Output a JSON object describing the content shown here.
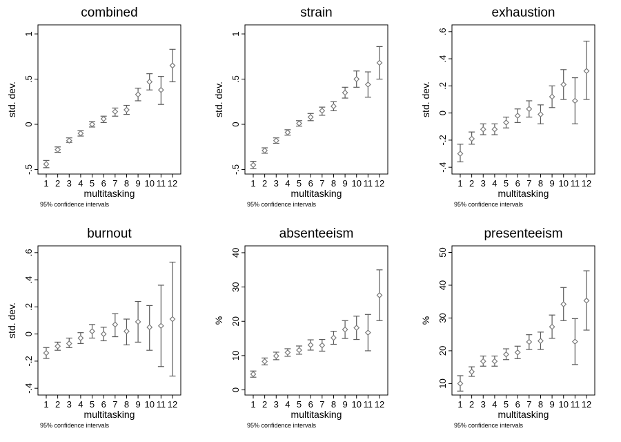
{
  "chart_data": [
    {
      "type": "scatter",
      "title": "combined",
      "xlabel": "multitasking",
      "ylabel": "std. dev.",
      "note": "95% confidence intervals",
      "x": [
        1,
        2,
        3,
        4,
        5,
        6,
        7,
        8,
        9,
        10,
        11,
        12
      ],
      "xticks": [
        "1",
        "2",
        "3",
        "4",
        "5",
        "6",
        "7",
        "8",
        "9",
        "10",
        "11",
        "12"
      ],
      "ylim": [
        -0.55,
        1.1
      ],
      "yticks": [
        -0.5,
        0,
        0.5,
        1
      ],
      "ytick_labels": [
        "-.5",
        "0",
        ".5",
        "1"
      ],
      "grid": false,
      "legend": "none",
      "series": [
        {
          "y": [
            -0.44,
            -0.28,
            -0.18,
            -0.1,
            0.0,
            0.06,
            0.14,
            0.16,
            0.33,
            0.47,
            0.38,
            0.65
          ],
          "lower": [
            -0.48,
            -0.31,
            -0.2,
            -0.13,
            -0.03,
            0.02,
            0.09,
            0.11,
            0.26,
            0.38,
            0.22,
            0.47
          ],
          "upper": [
            -0.4,
            -0.25,
            -0.15,
            -0.07,
            0.03,
            0.09,
            0.18,
            0.21,
            0.4,
            0.56,
            0.53,
            0.83
          ]
        }
      ]
    },
    {
      "type": "scatter",
      "title": "strain",
      "xlabel": "multitasking",
      "ylabel": "std. dev.",
      "note": "95% confidence intervals",
      "x": [
        1,
        2,
        3,
        4,
        5,
        6,
        7,
        8,
        9,
        10,
        11,
        12
      ],
      "xticks": [
        "1",
        "2",
        "3",
        "4",
        "5",
        "6",
        "7",
        "8",
        "9",
        "10",
        "11",
        "12"
      ],
      "ylim": [
        -0.55,
        1.1
      ],
      "yticks": [
        -0.5,
        0,
        0.5,
        1
      ],
      "ytick_labels": [
        "-.5",
        "0",
        ".5",
        "1"
      ],
      "grid": false,
      "legend": "none",
      "series": [
        {
          "y": [
            -0.45,
            -0.29,
            -0.18,
            -0.09,
            0.01,
            0.08,
            0.15,
            0.2,
            0.35,
            0.5,
            0.44,
            0.68
          ],
          "lower": [
            -0.49,
            -0.32,
            -0.21,
            -0.12,
            -0.02,
            0.04,
            0.1,
            0.15,
            0.29,
            0.41,
            0.3,
            0.5
          ],
          "upper": [
            -0.41,
            -0.26,
            -0.15,
            -0.06,
            0.04,
            0.12,
            0.19,
            0.25,
            0.41,
            0.59,
            0.58,
            0.86
          ]
        }
      ]
    },
    {
      "type": "scatter",
      "title": "exhaustion",
      "xlabel": "multitasking",
      "ylabel": "std. dev.",
      "note": "95% confidence intervals",
      "x": [
        1,
        2,
        3,
        4,
        5,
        6,
        7,
        8,
        9,
        10,
        11,
        12
      ],
      "xticks": [
        "1",
        "2",
        "3",
        "4",
        "5",
        "6",
        "7",
        "8",
        "9",
        "10",
        "11",
        "12"
      ],
      "ylim": [
        -0.45,
        0.65
      ],
      "yticks": [
        -0.4,
        -0.2,
        0,
        0.2,
        0.4,
        0.6
      ],
      "ytick_labels": [
        "-.4",
        "-.2",
        "0",
        ".2",
        ".4",
        ".6"
      ],
      "grid": false,
      "legend": "none",
      "series": [
        {
          "y": [
            -0.3,
            -0.19,
            -0.12,
            -0.12,
            -0.07,
            -0.02,
            0.03,
            -0.01,
            0.12,
            0.21,
            0.09,
            0.31
          ],
          "lower": [
            -0.36,
            -0.23,
            -0.16,
            -0.16,
            -0.11,
            -0.07,
            -0.03,
            -0.08,
            0.04,
            0.1,
            -0.08,
            0.1
          ],
          "upper": [
            -0.23,
            -0.14,
            -0.08,
            -0.08,
            -0.03,
            0.03,
            0.09,
            0.06,
            0.2,
            0.32,
            0.26,
            0.53
          ]
        }
      ]
    },
    {
      "type": "scatter",
      "title": "burnout",
      "xlabel": "multitasking",
      "ylabel": "std. dev.",
      "note": "95% confidence intervals",
      "x": [
        1,
        2,
        3,
        4,
        5,
        6,
        7,
        8,
        9,
        10,
        11,
        12
      ],
      "xticks": [
        "1",
        "2",
        "3",
        "4",
        "5",
        "6",
        "7",
        "8",
        "9",
        "10",
        "11",
        "12"
      ],
      "ylim": [
        -0.45,
        0.65
      ],
      "yticks": [
        -0.4,
        -0.2,
        0,
        0.2,
        0.4,
        0.6
      ],
      "ytick_labels": [
        "-.4",
        "-.2",
        "0",
        ".2",
        ".4",
        ".6"
      ],
      "grid": false,
      "legend": "none",
      "series": [
        {
          "y": [
            -0.14,
            -0.09,
            -0.07,
            -0.03,
            0.02,
            0.0,
            0.07,
            0.02,
            0.09,
            0.05,
            0.06,
            0.11
          ],
          "lower": [
            -0.18,
            -0.12,
            -0.1,
            -0.07,
            -0.03,
            -0.05,
            -0.02,
            -0.08,
            -0.06,
            -0.12,
            -0.24,
            -0.31
          ],
          "upper": [
            -0.1,
            -0.06,
            -0.03,
            0.01,
            0.07,
            0.05,
            0.15,
            0.11,
            0.24,
            0.21,
            0.36,
            0.53
          ]
        }
      ]
    },
    {
      "type": "scatter",
      "title": "absenteeism",
      "xlabel": "multitasking",
      "ylabel": "%",
      "note": "95% confidence intervals",
      "x": [
        1,
        2,
        3,
        4,
        5,
        6,
        7,
        8,
        9,
        10,
        11,
        12
      ],
      "xticks": [
        "1",
        "2",
        "3",
        "4",
        "5",
        "6",
        "7",
        "8",
        "9",
        "10",
        "11",
        "12"
      ],
      "ylim": [
        -1.5,
        42
      ],
      "yticks": [
        0,
        10,
        20,
        30,
        40
      ],
      "ytick_labels": [
        "0",
        "10",
        "20",
        "30",
        "40"
      ],
      "grid": false,
      "legend": "none",
      "series": [
        {
          "y": [
            4.6,
            8.3,
            9.9,
            10.9,
            11.6,
            13.1,
            13.0,
            15.2,
            17.6,
            18.1,
            16.7,
            27.6
          ],
          "lower": [
            3.7,
            7.3,
            8.8,
            9.8,
            10.4,
            11.6,
            11.3,
            13.3,
            15.0,
            14.7,
            11.4,
            20.2
          ],
          "upper": [
            5.5,
            9.3,
            11.0,
            12.0,
            12.8,
            14.6,
            14.7,
            17.1,
            20.2,
            21.5,
            22.0,
            35.0
          ]
        }
      ]
    },
    {
      "type": "scatter",
      "title": "presenteeism",
      "xlabel": "multitasking",
      "ylabel": "%",
      "note": "95% confidence intervals",
      "x": [
        1,
        2,
        3,
        4,
        5,
        6,
        7,
        8,
        9,
        10,
        11,
        12
      ],
      "xticks": [
        "1",
        "2",
        "3",
        "4",
        "5",
        "6",
        "7",
        "8",
        "9",
        "10",
        "11",
        "12"
      ],
      "ylim": [
        6.5,
        52
      ],
      "yticks": [
        10,
        20,
        30,
        40,
        50
      ],
      "ytick_labels": [
        "10",
        "20",
        "30",
        "40",
        "50"
      ],
      "grid": false,
      "legend": "none",
      "series": [
        {
          "y": [
            10.0,
            13.6,
            16.8,
            16.8,
            18.9,
            19.5,
            22.7,
            23.0,
            27.3,
            34.2,
            22.8,
            35.3
          ],
          "lower": [
            7.7,
            12.2,
            15.3,
            15.3,
            17.3,
            17.6,
            20.4,
            20.4,
            23.8,
            29.2,
            15.8,
            26.3
          ],
          "upper": [
            12.4,
            15.1,
            18.4,
            18.4,
            20.6,
            21.4,
            24.9,
            25.7,
            30.9,
            39.3,
            29.8,
            44.4
          ]
        }
      ]
    }
  ]
}
